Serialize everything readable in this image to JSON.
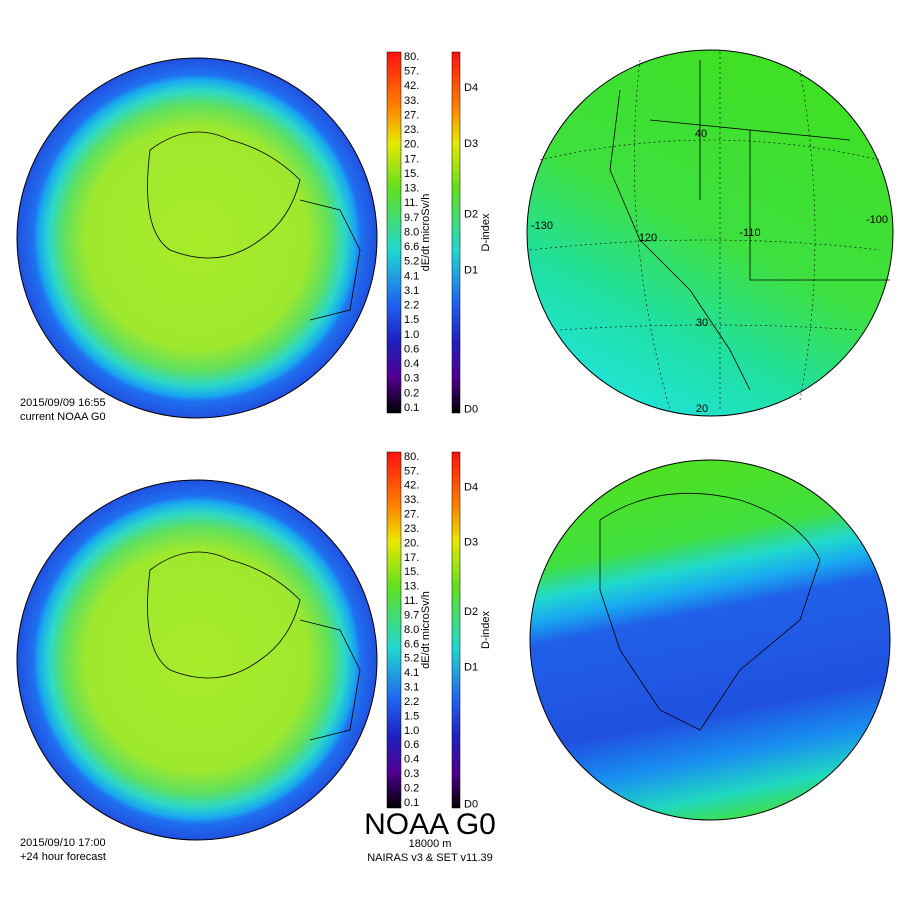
{
  "rows": [
    {
      "timestamp": "2015/09/09 16:55",
      "caption": "current NOAA G0",
      "dose_scale": {
        "title": "dE/dt microSv/h",
        "labels": [
          "80.",
          "57.",
          "42.",
          "33.",
          "27.",
          "23.",
          "20.",
          "17.",
          "15.",
          "13.",
          "11.",
          "9.7",
          "8.0",
          "6.6",
          "5.2",
          "4.1",
          "3.1",
          "2.2",
          "1.5",
          "1.0",
          "0.6",
          "0.4",
          "0.3",
          "0.2",
          "0.1"
        ]
      },
      "dindex_scale": {
        "title": "D-index",
        "labels": [
          "D4",
          "D3",
          "D2",
          "D1",
          "D0"
        ]
      },
      "map_labels": [
        "40",
        "-130",
        "120",
        "-110",
        "-100",
        "30",
        "20"
      ]
    },
    {
      "timestamp": "2015/09/10 17:00",
      "caption": "+24 hour forecast",
      "dose_scale": {
        "title": "dE/dt microSv/h",
        "labels": [
          "80.",
          "57.",
          "42.",
          "33.",
          "27.",
          "23.",
          "20.",
          "17.",
          "15.",
          "13.",
          "11.",
          "9.7",
          "8.0",
          "6.6",
          "5.2",
          "4.1",
          "3.1",
          "2.2",
          "1.5",
          "1.0",
          "0.6",
          "0.4",
          "0.3",
          "0.2",
          "0.1"
        ]
      },
      "dindex_scale": {
        "title": "D-index",
        "labels": [
          "D4",
          "D3",
          "D2",
          "D1",
          "D0"
        ]
      }
    }
  ],
  "footer": {
    "title": "NOAA G0",
    "altitude": "18000 m",
    "model": "NAIRAS v3 & SET v11.39"
  }
}
